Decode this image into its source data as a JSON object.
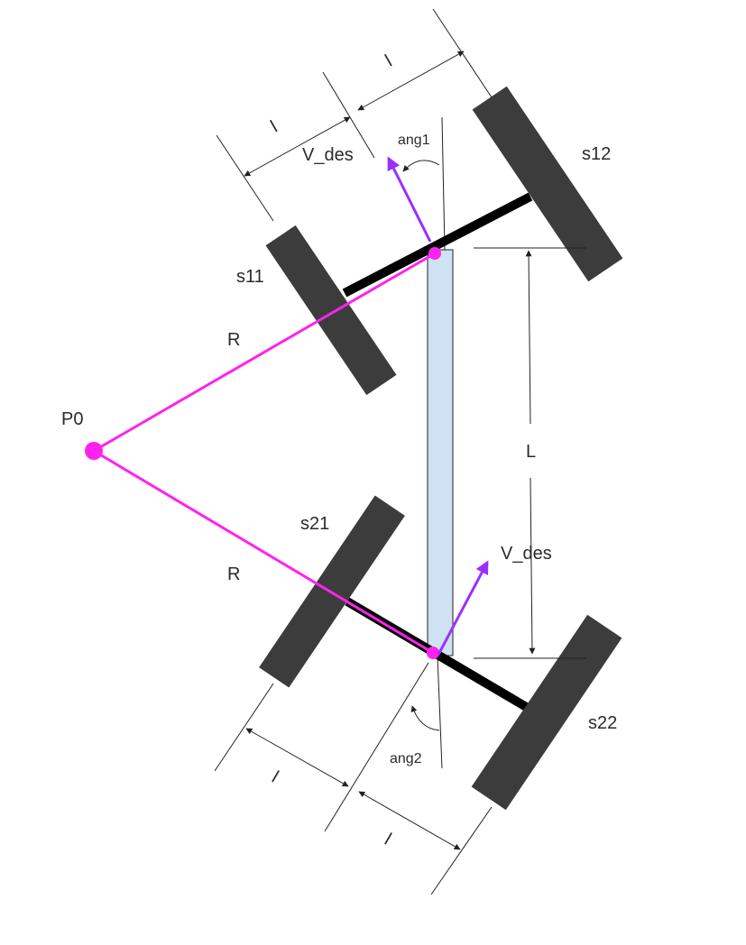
{
  "labels": {
    "s11": "s11",
    "s12": "s12",
    "s21": "s21",
    "s22": "s22",
    "p0": "P0",
    "r_top": "R",
    "r_bottom": "R",
    "l_big": "L",
    "v_des_top": "V_des",
    "v_des_bottom": "V_des",
    "ang1": "ang1",
    "ang2": "ang2",
    "l_top_left": "l",
    "l_top_right": "l",
    "l_bottom_left": "l",
    "l_bottom_right": "l"
  },
  "colors": {
    "radius_lines": "#ff22ee",
    "velocity_arrows": "#9b2fff",
    "chassis": "#cfe2f3",
    "wheels": "#3c3c3c"
  }
}
